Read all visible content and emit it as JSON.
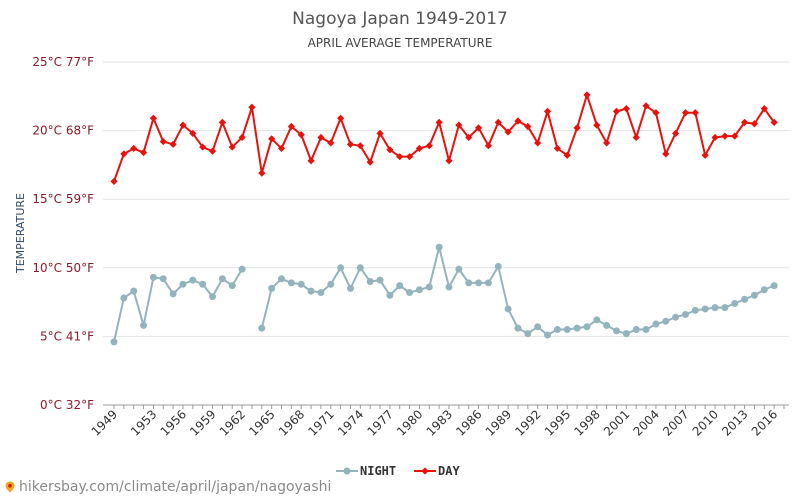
{
  "chart_data": {
    "type": "line",
    "title": "Nagoya Japan 1949-2017",
    "subtitle": "APRIL AVERAGE TEMPERATURE",
    "ylabel": "TEMPERATURE",
    "ylim": [
      0,
      25
    ],
    "yticks": [
      {
        "value": 0,
        "label": "0°C 32°F"
      },
      {
        "value": 5,
        "label": "5°C 41°F"
      },
      {
        "value": 10,
        "label": "10°C 50°F"
      },
      {
        "value": 15,
        "label": "15°C 59°F"
      },
      {
        "value": 20,
        "label": "20°C 68°F"
      },
      {
        "value": 25,
        "label": "25°C 77°F"
      }
    ],
    "xticks": [
      1949,
      1953,
      1956,
      1959,
      1962,
      1965,
      1968,
      1971,
      1974,
      1977,
      1980,
      1983,
      1986,
      1989,
      1992,
      1995,
      1998,
      2001,
      2004,
      2007,
      2010,
      2013,
      2016
    ],
    "x": [
      1949,
      1950,
      1951,
      1952,
      1953,
      1954,
      1955,
      1956,
      1957,
      1958,
      1959,
      1960,
      1961,
      1962,
      1963,
      1964,
      1965,
      1966,
      1967,
      1968,
      1969,
      1970,
      1971,
      1972,
      1973,
      1974,
      1975,
      1976,
      1977,
      1978,
      1979,
      1980,
      1981,
      1982,
      1983,
      1984,
      1985,
      1986,
      1987,
      1988,
      1989,
      1990,
      1991,
      1992,
      1993,
      1994,
      1995,
      1996,
      1997,
      1998,
      1999,
      2000,
      2001,
      2002,
      2003,
      2004,
      2005,
      2006,
      2007,
      2008,
      2009,
      2010,
      2011,
      2012,
      2013,
      2014,
      2015,
      2016,
      2017
    ],
    "grid": true,
    "legend_position": "bottom",
    "series": [
      {
        "name": "NIGHT",
        "color": "#93b3bd",
        "values": [
          4.6,
          7.8,
          8.3,
          5.8,
          9.3,
          9.2,
          8.1,
          8.8,
          9.1,
          8.8,
          7.9,
          9.2,
          8.7,
          9.9,
          null,
          5.6,
          8.5,
          9.2,
          8.9,
          8.8,
          8.3,
          8.2,
          8.8,
          10.0,
          8.5,
          10.0,
          9.0,
          9.1,
          8.0,
          8.7,
          8.2,
          8.4,
          8.6,
          11.5,
          8.6,
          9.9,
          8.9,
          8.9,
          8.9,
          10.1,
          7.0,
          5.6,
          5.2,
          5.7,
          5.1,
          5.5,
          5.5,
          5.6,
          5.7,
          6.2,
          5.8,
          5.4,
          5.2,
          5.5,
          5.5,
          5.9,
          6.1,
          6.4,
          6.6,
          6.9,
          7.0,
          7.1,
          7.1,
          7.4,
          7.7,
          8.0,
          8.4,
          8.7,
          null
        ]
      },
      {
        "name": "DAY",
        "color": "#e8120c",
        "values": [
          16.3,
          18.3,
          18.7,
          18.4,
          20.9,
          19.2,
          19.0,
          20.4,
          19.8,
          18.8,
          18.5,
          20.6,
          18.8,
          19.5,
          21.7,
          16.9,
          19.4,
          18.7,
          20.3,
          19.7,
          17.8,
          19.5,
          19.1,
          20.9,
          19.0,
          18.9,
          17.7,
          19.8,
          18.6,
          18.1,
          18.1,
          18.7,
          18.9,
          20.6,
          17.8,
          20.4,
          19.5,
          20.2,
          18.9,
          20.6,
          19.9,
          20.7,
          20.3,
          19.1,
          21.4,
          18.7,
          18.2,
          20.2,
          22.6,
          20.4,
          19.1,
          21.4,
          21.6,
          19.5,
          21.8,
          21.3,
          18.3,
          19.8,
          21.3,
          21.3,
          18.2,
          19.5,
          19.6,
          19.6,
          20.6,
          20.5,
          21.6,
          20.6,
          null
        ]
      }
    ]
  },
  "source": "hikersbay.com/climate/april/japan/nagoyashi",
  "icons": {
    "source_pin": "map-pin-icon"
  }
}
